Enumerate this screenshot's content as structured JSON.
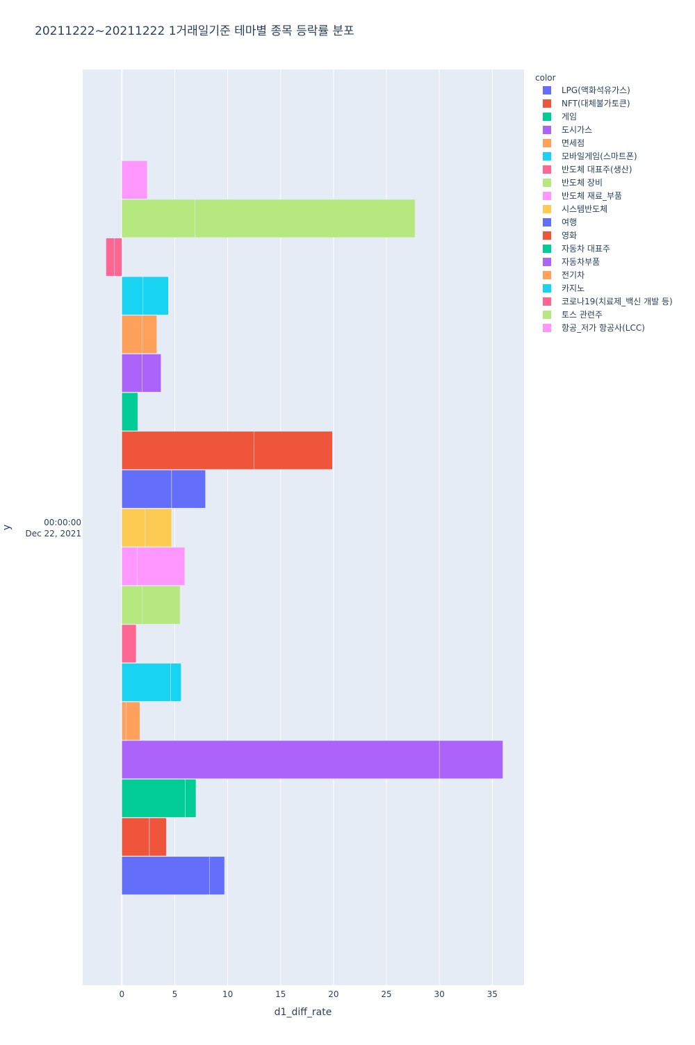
{
  "chart_data": {
    "type": "bar",
    "orientation": "horizontal",
    "barmode": "group",
    "title": "20211222~20211222 1거래일기준 테마별 종목 등락률 분포",
    "xlabel": "d1_diff_rate",
    "ylabel": "y",
    "y_tick_line1": "00:00:00",
    "y_tick_line2": "Dec 22, 2021",
    "xlim": [
      -3.7,
      38.0
    ],
    "xticks": [
      0,
      5,
      10,
      15,
      20,
      25,
      30,
      35
    ],
    "xtick_labels": [
      "0",
      "5",
      "10",
      "15",
      "20",
      "25",
      "30",
      "35"
    ],
    "legend_title": "color",
    "legend_position": "right",
    "series": [
      {
        "name": "LPG(액화석유가스)",
        "color": "#636efa",
        "values": [
          8.3,
          1.4
        ]
      },
      {
        "name": "NFT(대체불가토큰)",
        "color": "#ef553b",
        "values": [
          2.6,
          1.6
        ]
      },
      {
        "name": "게임",
        "color": "#00cc96",
        "values": [
          6.0,
          1.0
        ]
      },
      {
        "name": "도시가스",
        "color": "#ab63fa",
        "values": [
          30.0,
          6.0
        ]
      },
      {
        "name": "면세점",
        "color": "#ffa15a",
        "values": [
          0.4,
          1.3
        ]
      },
      {
        "name": "모바일게임(스마트폰)",
        "color": "#19d3f3",
        "values": [
          4.6,
          1.0
        ]
      },
      {
        "name": "반도체 대표주(생산)",
        "color": "#ff6692",
        "values": [
          1.35
        ]
      },
      {
        "name": "반도체 장비",
        "color": "#b6e880",
        "values": [
          1.9,
          3.6
        ]
      },
      {
        "name": "반도체 재료_부품",
        "color": "#ff97ff",
        "values": [
          1.45,
          4.5
        ]
      },
      {
        "name": "시스템반도체",
        "color": "#fecb52",
        "values": [
          2.2,
          2.5
        ]
      },
      {
        "name": "여행",
        "color": "#636efa",
        "values": [
          4.7,
          3.2
        ]
      },
      {
        "name": "영화",
        "color": "#ef553b",
        "values": [
          12.5,
          7.4
        ]
      },
      {
        "name": "자동차 대표주",
        "color": "#00cc96",
        "values": [
          1.5
        ]
      },
      {
        "name": "자동차부품",
        "color": "#ab63fa",
        "values": [
          1.9,
          1.8
        ]
      },
      {
        "name": "전기차",
        "color": "#ffa15a",
        "values": [
          1.9,
          1.4
        ]
      },
      {
        "name": "카지노",
        "color": "#19d3f3",
        "values": [
          2.0,
          2.4
        ]
      },
      {
        "name": "코로나19(치료제_백신 개발 등)",
        "color": "#ff6692",
        "values": [
          -0.7,
          -0.8
        ]
      },
      {
        "name": "토스 관련주",
        "color": "#b6e880",
        "values": [
          6.9,
          20.8
        ]
      },
      {
        "name": "항공_저가 항공사(LCC)",
        "color": "#ff97ff",
        "values": [
          2.4
        ]
      }
    ]
  },
  "colors": {
    "plot_bg": "#e5ecf6",
    "grid": "#ffffff",
    "text": "#2a3f5f"
  }
}
